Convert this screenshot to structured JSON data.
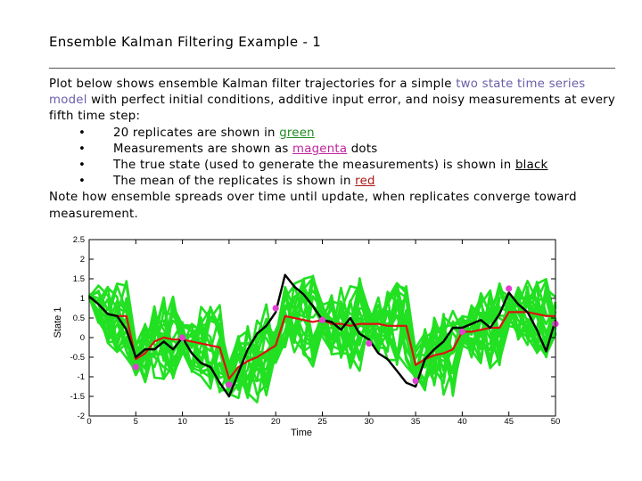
{
  "slide": {
    "title": "Ensemble Kalman Filtering Example - 1",
    "intro_prefix": "Plot below shows ensemble Kalman filter trajectories for a simple ",
    "intro_link": "two state time series model",
    "intro_suffix": " with perfect initial conditions, additive input error, and noisy measurements at every fifth time step:",
    "bullet_glyph": "•",
    "bullets": [
      {
        "prefix": "20 replicates are shown in ",
        "term": "green",
        "suffix": ""
      },
      {
        "prefix": "Measurements are shown as ",
        "term": "magenta",
        "suffix": " dots"
      },
      {
        "prefix": "The true state (used to generate the measurements) is shown in ",
        "term": "black",
        "suffix": ""
      },
      {
        "prefix": "The mean of the replicates is shown in ",
        "term": "red",
        "suffix": ""
      }
    ],
    "note": "Note how ensemble spreads over time until update, when replicates converge toward measurement."
  },
  "colors": {
    "replicates": "#22e022",
    "measurements": "#e040d0",
    "truth": "#000000",
    "mean": "#dd1111"
  },
  "chart_data": {
    "type": "line",
    "xlabel": "Time",
    "ylabel": "State 1",
    "xlim": [
      0,
      50
    ],
    "ylim": [
      -2,
      2.5
    ],
    "xticks": [
      "0",
      "5",
      "10",
      "15",
      "20",
      "25",
      "30",
      "35",
      "40",
      "45",
      "50"
    ],
    "yticks": [
      "-2",
      "-1.5",
      "-1",
      "-0.5",
      "0",
      "0.5",
      "1",
      "1.5",
      "2",
      "2.5"
    ],
    "grid": false,
    "series": [
      {
        "name": "Measurements",
        "style": "markers",
        "x": [
          5,
          10,
          15,
          20,
          25,
          30,
          35,
          40,
          45,
          50
        ],
        "values": [
          -0.75,
          0,
          -1.2,
          0.75,
          0.45,
          -0.15,
          -1.1,
          0.15,
          1.25,
          0.35
        ]
      },
      {
        "name": "True state",
        "style": "line",
        "x": [
          0,
          1,
          2,
          3,
          4,
          5,
          6,
          7,
          8,
          9,
          10,
          11,
          12,
          13,
          14,
          15,
          16,
          17,
          18,
          19,
          20,
          21,
          22,
          23,
          24,
          25,
          26,
          27,
          28,
          29,
          30,
          31,
          32,
          33,
          34,
          35,
          36,
          37,
          38,
          39,
          40,
          41,
          42,
          43,
          44,
          45,
          46,
          47,
          48,
          49,
          50
        ],
        "values": [
          1.05,
          0.85,
          0.6,
          0.55,
          0.2,
          -0.5,
          -0.3,
          -0.3,
          -0.1,
          -0.3,
          0.0,
          -0.4,
          -0.65,
          -0.75,
          -1.15,
          -1.5,
          -0.9,
          -0.3,
          0.1,
          0.3,
          0.65,
          1.6,
          1.3,
          1.1,
          0.8,
          0.45,
          0.4,
          0.2,
          0.5,
          0.1,
          -0.05,
          -0.4,
          -0.55,
          -0.85,
          -1.15,
          -1.25,
          -0.55,
          -0.3,
          -0.1,
          0.25,
          0.25,
          0.35,
          0.45,
          0.25,
          0.6,
          1.15,
          0.85,
          0.65,
          0.2,
          -0.35,
          0.45
        ]
      },
      {
        "name": "Mean of replicates",
        "style": "line",
        "x": [
          0,
          1,
          2,
          3,
          4,
          5,
          6,
          7,
          8,
          9,
          10,
          11,
          12,
          13,
          14,
          15,
          16,
          17,
          18,
          19,
          20,
          21,
          22,
          23,
          24,
          25,
          26,
          27,
          28,
          29,
          30,
          31,
          32,
          33,
          34,
          35,
          36,
          37,
          38,
          39,
          40,
          41,
          42,
          43,
          44,
          45,
          46,
          47,
          48,
          49,
          50
        ],
        "values": [
          1.05,
          0.85,
          0.6,
          0.55,
          0.55,
          -0.55,
          -0.4,
          -0.1,
          0.0,
          -0.05,
          -0.05,
          -0.1,
          -0.15,
          -0.2,
          -0.25,
          -1.05,
          -0.75,
          -0.6,
          -0.5,
          -0.35,
          -0.2,
          0.55,
          0.5,
          0.45,
          0.4,
          0.45,
          0.35,
          0.35,
          0.3,
          0.35,
          0.35,
          0.35,
          0.3,
          0.3,
          0.3,
          -0.7,
          -0.55,
          -0.45,
          -0.4,
          -0.3,
          0.15,
          0.15,
          0.2,
          0.25,
          0.25,
          0.65,
          0.65,
          0.65,
          0.6,
          0.55,
          0.55
        ]
      }
    ],
    "replicate_band": {
      "name": "Replicates",
      "count": 20,
      "x": [
        0,
        1,
        2,
        3,
        4,
        5,
        6,
        7,
        8,
        9,
        10,
        11,
        12,
        13,
        14,
        15,
        16,
        17,
        18,
        19,
        20,
        21,
        22,
        23,
        24,
        25,
        26,
        27,
        28,
        29,
        30,
        31,
        32,
        33,
        34,
        35,
        36,
        37,
        38,
        39,
        40,
        41,
        42,
        43,
        44,
        45,
        46,
        47,
        48,
        49,
        50
      ],
      "center": [
        1.05,
        0.85,
        0.6,
        0.55,
        0.55,
        -0.55,
        -0.4,
        -0.1,
        0.0,
        -0.05,
        -0.05,
        -0.1,
        -0.15,
        -0.2,
        -0.25,
        -1.05,
        -0.75,
        -0.6,
        -0.5,
        -0.35,
        -0.2,
        0.55,
        0.5,
        0.45,
        0.4,
        0.45,
        0.35,
        0.35,
        0.3,
        0.35,
        0.35,
        0.35,
        0.3,
        0.3,
        0.3,
        -0.7,
        -0.55,
        -0.45,
        -0.4,
        -0.3,
        0.15,
        0.15,
        0.2,
        0.25,
        0.25,
        0.65,
        0.65,
        0.65,
        0.6,
        0.55,
        0.55
      ],
      "spread": [
        0.05,
        0.5,
        0.75,
        0.95,
        1.1,
        0.45,
        0.75,
        0.95,
        1.1,
        1.2,
        0.45,
        0.8,
        1.0,
        1.15,
        1.25,
        0.45,
        0.8,
        1.0,
        1.15,
        1.25,
        0.45,
        0.8,
        1.0,
        1.1,
        1.2,
        0.45,
        0.8,
        1.0,
        1.1,
        1.2,
        0.45,
        0.75,
        1.0,
        1.1,
        1.2,
        0.45,
        0.8,
        1.0,
        1.1,
        1.2,
        0.45,
        0.75,
        0.95,
        1.05,
        1.15,
        0.45,
        0.7,
        0.85,
        1.0,
        1.05,
        0.5
      ]
    }
  }
}
